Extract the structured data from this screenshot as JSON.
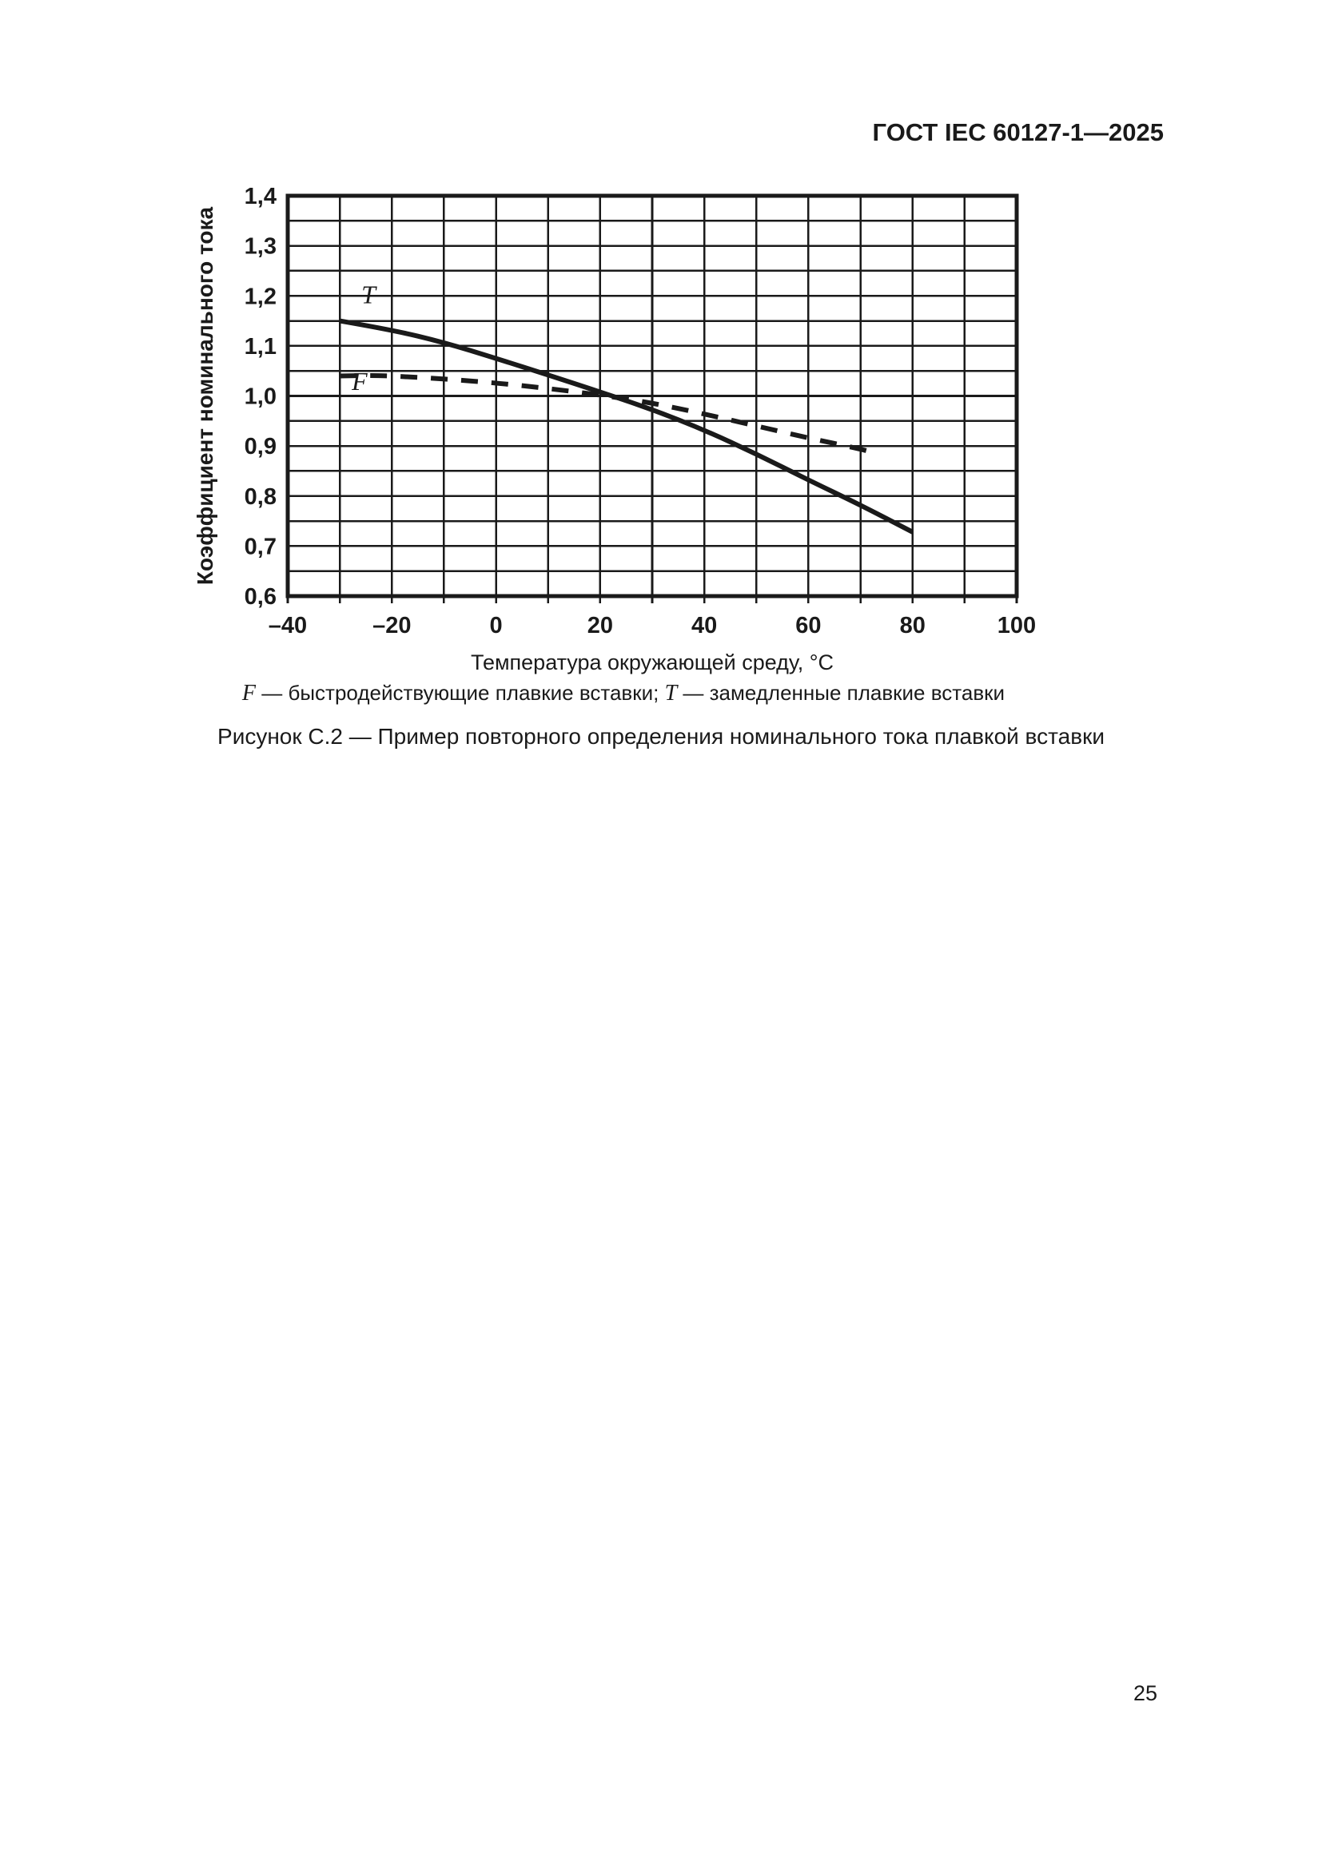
{
  "header": {
    "title": "ГОСТ IEC 60127-1—2025"
  },
  "figure": {
    "legend": {
      "f_symbol": "F",
      "f_text": " — быстродействующие плавкие вставки; ",
      "t_symbol": "T",
      "t_text": " — замедленные плавкие вставки"
    },
    "caption": "Рисунок С.2 — Пример повторного определения номинального тока плавкой вставки"
  },
  "page_number": "25",
  "chart_data": {
    "type": "line",
    "title": "",
    "xlabel": "Температура окружающей среду, °С",
    "ylabel": "Коэффициент номинального тока",
    "xlim": [
      -40,
      100
    ],
    "ylim": [
      0.6,
      1.4
    ],
    "x_grid_step": 10,
    "y_grid_step": 0.05,
    "grid": true,
    "legend_position": "inline-labels",
    "x_major_ticks": [
      -40,
      -20,
      0,
      20,
      40,
      60,
      80,
      100
    ],
    "x_tick_labels": [
      "–40",
      "–20",
      "0",
      "20",
      "40",
      "60",
      "80",
      "100"
    ],
    "y_major_ticks": [
      1.4,
      1.3,
      1.2,
      1.1,
      1.0,
      0.9,
      0.8,
      0.7,
      0.6
    ],
    "y_tick_labels": [
      "1,4",
      "1,3",
      "1,2",
      "1,1",
      "1,0",
      "0,9",
      "0,8",
      "0,7",
      "0,6"
    ],
    "series": [
      {
        "name": "T",
        "style": "solid",
        "label_pos": [
          -24.5,
          1.185
        ],
        "points": [
          [
            -30,
            1.15
          ],
          [
            -20,
            1.132
          ],
          [
            -10,
            1.107
          ],
          [
            0,
            1.075
          ],
          [
            10,
            1.042
          ],
          [
            20,
            1.008
          ],
          [
            30,
            0.973
          ],
          [
            40,
            0.932
          ],
          [
            50,
            0.884
          ],
          [
            60,
            0.832
          ],
          [
            70,
            0.782
          ],
          [
            80,
            0.728
          ]
        ]
      },
      {
        "name": "F",
        "style": "dashed",
        "label_pos": [
          -26.2,
          1.012
        ],
        "points": [
          [
            -30,
            1.04
          ],
          [
            -25,
            1.041
          ],
          [
            -20,
            1.04
          ],
          [
            -10,
            1.034
          ],
          [
            0,
            1.026
          ],
          [
            10,
            1.015
          ],
          [
            20,
            1.002
          ],
          [
            30,
            0.986
          ],
          [
            40,
            0.964
          ],
          [
            50,
            0.94
          ],
          [
            60,
            0.916
          ],
          [
            70,
            0.894
          ],
          [
            73.5,
            0.884
          ]
        ]
      }
    ]
  }
}
